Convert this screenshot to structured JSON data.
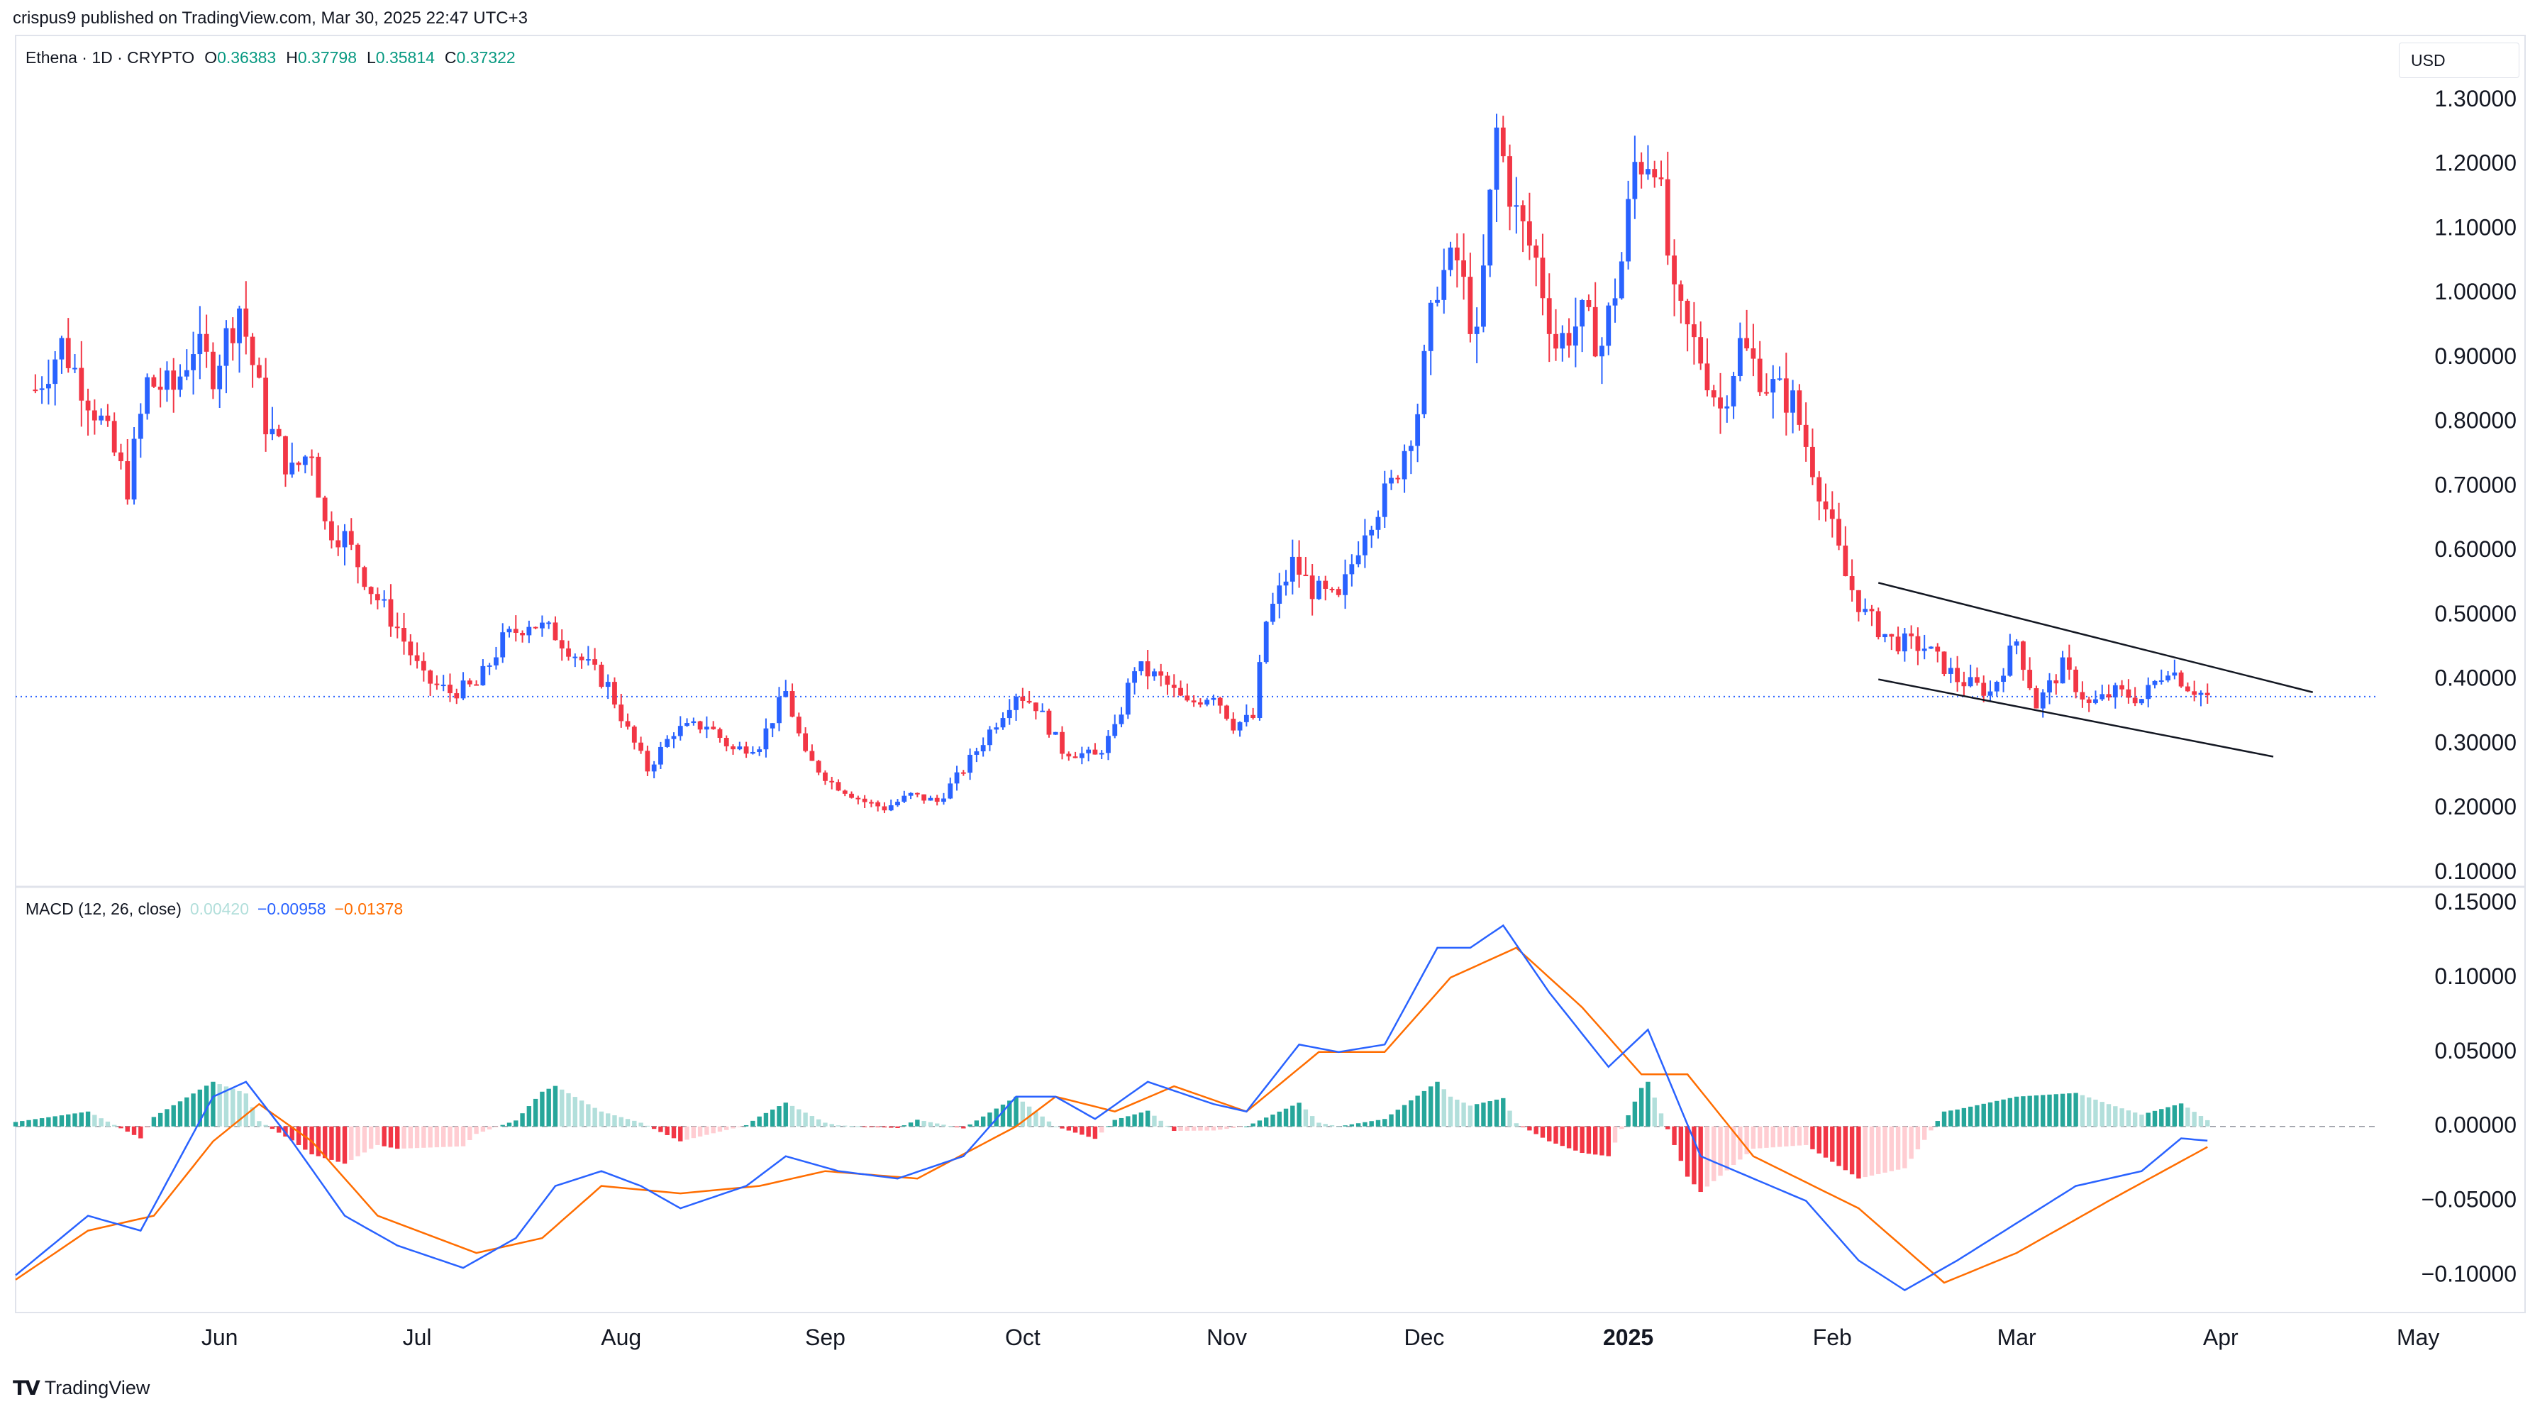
{
  "header": {
    "publisher": "crispus9 published on TradingView.com, Mar 30, 2025 22:47 UTC+3",
    "symbol": "Ethena · 1D · CRYPTO",
    "ohlc": [
      {
        "k": "O",
        "v": "0.36383"
      },
      {
        "k": "H",
        "v": "0.37798"
      },
      {
        "k": "L",
        "v": "0.35814"
      },
      {
        "k": "C",
        "v": "0.37322"
      }
    ],
    "currency": "USD"
  },
  "macd_legend": {
    "label": "MACD (12, 26, close)",
    "hist": "0.00420",
    "macd": "−0.00958",
    "signal": "−0.01378"
  },
  "footer": {
    "brand": "TradingView"
  },
  "colors": {
    "up": "#2962ff",
    "down": "#f23645",
    "hist_up_strong": "#26a69a",
    "hist_up_weak": "#b2dfdb",
    "hist_down_strong": "#f23645",
    "hist_down_weak": "#ffcdd2",
    "macd_line": "#2962ff",
    "signal_line": "#ff6d00",
    "price_line": "#2962ff"
  },
  "chart_data": [
    {
      "type": "candlestick",
      "pane": "price",
      "title": "Ethena · 1D · CRYPTO",
      "ylim": [
        0.08,
        1.4
      ],
      "yticks": [
        "0.10000",
        "0.20000",
        "0.30000",
        "0.40000",
        "0.50000",
        "0.60000",
        "0.70000",
        "0.80000",
        "0.90000",
        "1.00000",
        "1.10000",
        "1.20000",
        "1.30000"
      ],
      "x_months": [
        "Jun",
        "Jul",
        "Aug",
        "Sep",
        "Oct",
        "Nov",
        "Dec",
        "2025",
        "Feb",
        "Mar",
        "Apr",
        "May"
      ],
      "last_price": 0.37322,
      "close_path": [
        {
          "date": "2024-05-04",
          "close": 0.85
        },
        {
          "date": "2024-05-08",
          "close": 0.92
        },
        {
          "date": "2024-05-14",
          "close": 0.8
        },
        {
          "date": "2024-05-18",
          "close": 0.7
        },
        {
          "date": "2024-05-21",
          "close": 0.86
        },
        {
          "date": "2024-05-25",
          "close": 0.85
        },
        {
          "date": "2024-05-28",
          "close": 0.92
        },
        {
          "date": "2024-05-31",
          "close": 0.88
        },
        {
          "date": "2024-06-04",
          "close": 0.98
        },
        {
          "date": "2024-06-08",
          "close": 0.8
        },
        {
          "date": "2024-06-12",
          "close": 0.72
        },
        {
          "date": "2024-06-15",
          "close": 0.76
        },
        {
          "date": "2024-06-17",
          "close": 0.64
        },
        {
          "date": "2024-06-20",
          "close": 0.62
        },
        {
          "date": "2024-06-24",
          "close": 0.54
        },
        {
          "date": "2024-06-28",
          "close": 0.48
        },
        {
          "date": "2024-07-02",
          "close": 0.4
        },
        {
          "date": "2024-07-06",
          "close": 0.38
        },
        {
          "date": "2024-07-10",
          "close": 0.39
        },
        {
          "date": "2024-07-14",
          "close": 0.46
        },
        {
          "date": "2024-07-18",
          "close": 0.49
        },
        {
          "date": "2024-07-22",
          "close": 0.47
        },
        {
          "date": "2024-07-26",
          "close": 0.43
        },
        {
          "date": "2024-07-30",
          "close": 0.39
        },
        {
          "date": "2024-08-02",
          "close": 0.32
        },
        {
          "date": "2024-08-05",
          "close": 0.26
        },
        {
          "date": "2024-08-09",
          "close": 0.32
        },
        {
          "date": "2024-08-14",
          "close": 0.33
        },
        {
          "date": "2024-08-18",
          "close": 0.29
        },
        {
          "date": "2024-08-22",
          "close": 0.3
        },
        {
          "date": "2024-08-26",
          "close": 0.38
        },
        {
          "date": "2024-08-29",
          "close": 0.28
        },
        {
          "date": "2024-09-02",
          "close": 0.24
        },
        {
          "date": "2024-09-07",
          "close": 0.21
        },
        {
          "date": "2024-09-10",
          "close": 0.2
        },
        {
          "date": "2024-09-14",
          "close": 0.22
        },
        {
          "date": "2024-09-18",
          "close": 0.21
        },
        {
          "date": "2024-09-22",
          "close": 0.26
        },
        {
          "date": "2024-09-26",
          "close": 0.32
        },
        {
          "date": "2024-09-30",
          "close": 0.38
        },
        {
          "date": "2024-10-03",
          "close": 0.36
        },
        {
          "date": "2024-10-07",
          "close": 0.29
        },
        {
          "date": "2024-10-12",
          "close": 0.28
        },
        {
          "date": "2024-10-15",
          "close": 0.32
        },
        {
          "date": "2024-10-18",
          "close": 0.42
        },
        {
          "date": "2024-10-22",
          "close": 0.4
        },
        {
          "date": "2024-10-26",
          "close": 0.36
        },
        {
          "date": "2024-10-30",
          "close": 0.38
        },
        {
          "date": "2024-11-02",
          "close": 0.33
        },
        {
          "date": "2024-11-05",
          "close": 0.34
        },
        {
          "date": "2024-11-07",
          "close": 0.49
        },
        {
          "date": "2024-11-11",
          "close": 0.58
        },
        {
          "date": "2024-11-14",
          "close": 0.54
        },
        {
          "date": "2024-11-18",
          "close": 0.52
        },
        {
          "date": "2024-11-22",
          "close": 0.64
        },
        {
          "date": "2024-11-26",
          "close": 0.7
        },
        {
          "date": "2024-11-30",
          "close": 0.82
        },
        {
          "date": "2024-12-03",
          "close": 1.02
        },
        {
          "date": "2024-12-06",
          "close": 1.05
        },
        {
          "date": "2024-12-09",
          "close": 0.92
        },
        {
          "date": "2024-12-12",
          "close": 1.25
        },
        {
          "date": "2024-12-15",
          "close": 1.12
        },
        {
          "date": "2024-12-18",
          "close": 1.05
        },
        {
          "date": "2024-12-21",
          "close": 0.92
        },
        {
          "date": "2024-12-25",
          "close": 0.96
        },
        {
          "date": "2024-12-28",
          "close": 0.92
        },
        {
          "date": "2024-12-31",
          "close": 1.05
        },
        {
          "date": "2025-01-02",
          "close": 1.2
        },
        {
          "date": "2025-01-05",
          "close": 1.22
        },
        {
          "date": "2025-01-08",
          "close": 0.98
        },
        {
          "date": "2025-01-12",
          "close": 0.9
        },
        {
          "date": "2025-01-15",
          "close": 0.82
        },
        {
          "date": "2025-01-18",
          "close": 0.92
        },
        {
          "date": "2025-01-22",
          "close": 0.86
        },
        {
          "date": "2025-01-26",
          "close": 0.83
        },
        {
          "date": "2025-01-30",
          "close": 0.7
        },
        {
          "date": "2025-02-03",
          "close": 0.56
        },
        {
          "date": "2025-02-06",
          "close": 0.5
        },
        {
          "date": "2025-02-10",
          "close": 0.46
        },
        {
          "date": "2025-02-15",
          "close": 0.45
        },
        {
          "date": "2025-02-20",
          "close": 0.4
        },
        {
          "date": "2025-02-25",
          "close": 0.38
        },
        {
          "date": "2025-03-01",
          "close": 0.46
        },
        {
          "date": "2025-03-04",
          "close": 0.36
        },
        {
          "date": "2025-03-08",
          "close": 0.42
        },
        {
          "date": "2025-03-12",
          "close": 0.36
        },
        {
          "date": "2025-03-16",
          "close": 0.38
        },
        {
          "date": "2025-03-20",
          "close": 0.37
        },
        {
          "date": "2025-03-24",
          "close": 0.42
        },
        {
          "date": "2025-03-27",
          "close": 0.39
        },
        {
          "date": "2025-03-30",
          "close": 0.373
        }
      ],
      "trendlines": [
        {
          "name": "upper-channel",
          "from": {
            "date": "2025-02-08",
            "price": 0.55
          },
          "to": {
            "date": "2025-04-15",
            "price": 0.38
          }
        },
        {
          "name": "lower-channel",
          "from": {
            "date": "2025-02-08",
            "price": 0.4
          },
          "to": {
            "date": "2025-04-09",
            "price": 0.28
          }
        }
      ]
    },
    {
      "type": "macd",
      "pane": "indicator",
      "title": "MACD (12, 26, close)",
      "ylim": [
        -0.125,
        0.16
      ],
      "yticks": [
        "0.15000",
        "0.10000",
        "0.05000",
        "0.00000",
        "−0.05000",
        "−0.10000"
      ],
      "macd_line": [
        {
          "date": "2024-05-01",
          "v": -0.1
        },
        {
          "date": "2024-05-12",
          "v": -0.06
        },
        {
          "date": "2024-05-20",
          "v": -0.07
        },
        {
          "date": "2024-05-31",
          "v": 0.02
        },
        {
          "date": "2024-06-05",
          "v": 0.03
        },
        {
          "date": "2024-06-12",
          "v": -0.01
        },
        {
          "date": "2024-06-20",
          "v": -0.06
        },
        {
          "date": "2024-06-28",
          "v": -0.08
        },
        {
          "date": "2024-07-08",
          "v": -0.095
        },
        {
          "date": "2024-07-16",
          "v": -0.075
        },
        {
          "date": "2024-07-22",
          "v": -0.04
        },
        {
          "date": "2024-07-29",
          "v": -0.03
        },
        {
          "date": "2024-08-04",
          "v": -0.04
        },
        {
          "date": "2024-08-10",
          "v": -0.055
        },
        {
          "date": "2024-08-20",
          "v": -0.04
        },
        {
          "date": "2024-08-26",
          "v": -0.02
        },
        {
          "date": "2024-09-03",
          "v": -0.03
        },
        {
          "date": "2024-09-12",
          "v": -0.035
        },
        {
          "date": "2024-09-22",
          "v": -0.02
        },
        {
          "date": "2024-09-30",
          "v": 0.02
        },
        {
          "date": "2024-10-06",
          "v": 0.02
        },
        {
          "date": "2024-10-12",
          "v": 0.005
        },
        {
          "date": "2024-10-20",
          "v": 0.03
        },
        {
          "date": "2024-10-30",
          "v": 0.015
        },
        {
          "date": "2024-11-04",
          "v": 0.01
        },
        {
          "date": "2024-11-12",
          "v": 0.055
        },
        {
          "date": "2024-11-18",
          "v": 0.05
        },
        {
          "date": "2024-11-25",
          "v": 0.055
        },
        {
          "date": "2024-12-03",
          "v": 0.12
        },
        {
          "date": "2024-12-08",
          "v": 0.12
        },
        {
          "date": "2024-12-13",
          "v": 0.135
        },
        {
          "date": "2024-12-20",
          "v": 0.09
        },
        {
          "date": "2024-12-29",
          "v": 0.04
        },
        {
          "date": "2025-01-04",
          "v": 0.065
        },
        {
          "date": "2025-01-12",
          "v": -0.02
        },
        {
          "date": "2025-01-20",
          "v": -0.035
        },
        {
          "date": "2025-01-28",
          "v": -0.05
        },
        {
          "date": "2025-02-05",
          "v": -0.09
        },
        {
          "date": "2025-02-12",
          "v": -0.11
        },
        {
          "date": "2025-02-20",
          "v": -0.09
        },
        {
          "date": "2025-03-01",
          "v": -0.065
        },
        {
          "date": "2025-03-10",
          "v": -0.04
        },
        {
          "date": "2025-03-20",
          "v": -0.03
        },
        {
          "date": "2025-03-26",
          "v": -0.008
        },
        {
          "date": "2025-03-30",
          "v": -0.00958
        }
      ],
      "signal_line": [
        {
          "date": "2024-05-01",
          "v": -0.103
        },
        {
          "date": "2024-05-12",
          "v": -0.07
        },
        {
          "date": "2024-05-22",
          "v": -0.06
        },
        {
          "date": "2024-05-31",
          "v": -0.01
        },
        {
          "date": "2024-06-07",
          "v": 0.015
        },
        {
          "date": "2024-06-15",
          "v": -0.01
        },
        {
          "date": "2024-06-25",
          "v": -0.06
        },
        {
          "date": "2024-07-10",
          "v": -0.085
        },
        {
          "date": "2024-07-20",
          "v": -0.075
        },
        {
          "date": "2024-07-29",
          "v": -0.04
        },
        {
          "date": "2024-08-10",
          "v": -0.045
        },
        {
          "date": "2024-08-22",
          "v": -0.04
        },
        {
          "date": "2024-09-01",
          "v": -0.03
        },
        {
          "date": "2024-09-15",
          "v": -0.035
        },
        {
          "date": "2024-09-30",
          "v": 0.0
        },
        {
          "date": "2024-10-06",
          "v": 0.02
        },
        {
          "date": "2024-10-15",
          "v": 0.01
        },
        {
          "date": "2024-10-24",
          "v": 0.027
        },
        {
          "date": "2024-11-04",
          "v": 0.01
        },
        {
          "date": "2024-11-15",
          "v": 0.05
        },
        {
          "date": "2024-11-25",
          "v": 0.05
        },
        {
          "date": "2024-12-05",
          "v": 0.1
        },
        {
          "date": "2024-12-15",
          "v": 0.12
        },
        {
          "date": "2024-12-25",
          "v": 0.08
        },
        {
          "date": "2025-01-03",
          "v": 0.035
        },
        {
          "date": "2025-01-10",
          "v": 0.035
        },
        {
          "date": "2025-01-20",
          "v": -0.02
        },
        {
          "date": "2025-02-05",
          "v": -0.055
        },
        {
          "date": "2025-02-18",
          "v": -0.105
        },
        {
          "date": "2025-03-01",
          "v": -0.085
        },
        {
          "date": "2025-03-15",
          "v": -0.05
        },
        {
          "date": "2025-03-30",
          "v": -0.01378
        }
      ],
      "histogram_last": 0.0042
    }
  ]
}
